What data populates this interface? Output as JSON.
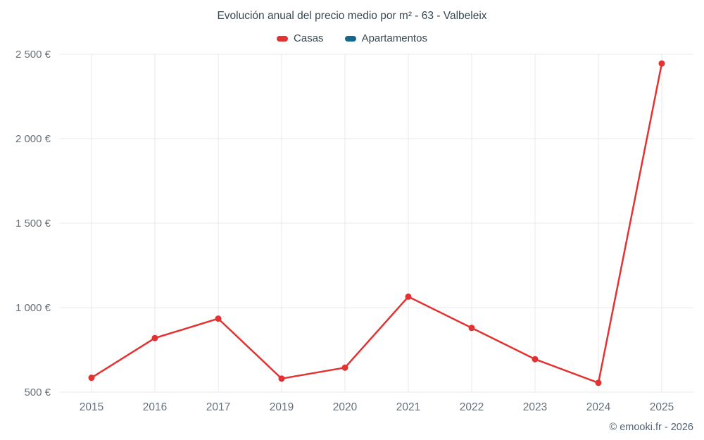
{
  "chart_data": {
    "type": "line",
    "title": "Evolución anual del precio medio por m² - 63 - Valbeleix",
    "categories": [
      "2015",
      "2016",
      "2017",
      "2019",
      "2020",
      "2021",
      "2022",
      "2023",
      "2024",
      "2025"
    ],
    "series": [
      {
        "name": "Casas",
        "color": "#e23232",
        "values": [
          585,
          820,
          935,
          580,
          645,
          1065,
          880,
          695,
          555,
          2445
        ]
      },
      {
        "name": "Apartamentos",
        "color": "#16688a",
        "values": []
      }
    ],
    "ylim": [
      500,
      2500
    ],
    "y_ticks": [
      500,
      1000,
      1500,
      2000,
      2500
    ],
    "y_tick_labels": [
      "500 €",
      "1 000 €",
      "1 500 €",
      "2 000 €",
      "2 500 €"
    ],
    "xlabel": "",
    "ylabel": "",
    "grid": true,
    "legend_position": "top",
    "gridline_color": "#e8e8e8",
    "axis_label_color": "#66707a"
  },
  "footer": {
    "credit": "© emooki.fr - 2026"
  }
}
